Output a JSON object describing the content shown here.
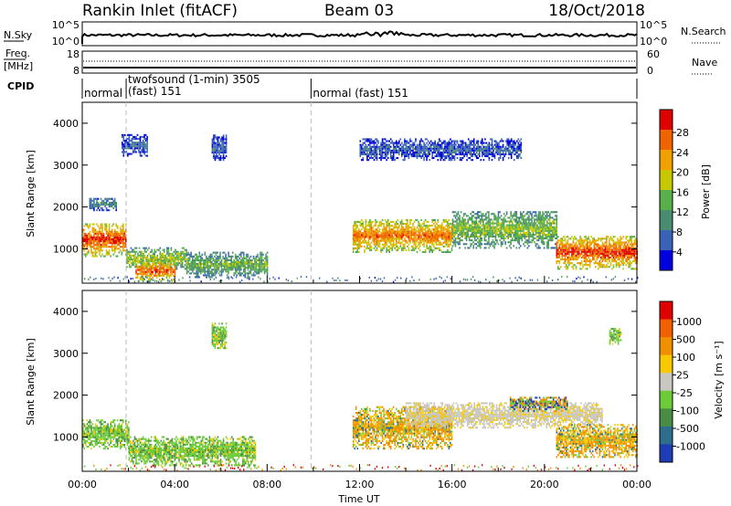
{
  "header": {
    "station": "Rankin Inlet (fitACF)",
    "beam": "Beam 03",
    "date": "18/Oct/2018"
  },
  "status_panels": {
    "nsky_label": "N.Sky",
    "nsky_ticks": [
      "10^5",
      "10^0"
    ],
    "nsearch_label": "N.Search",
    "nsearch_ticks": [
      "10^5",
      "10^0"
    ],
    "freq_label": "Freq.",
    "freq_unit": "[MHz]",
    "freq_ticks": [
      "18",
      "8"
    ],
    "nave_label": "Nave",
    "nave_ticks": [
      "60",
      "0"
    ],
    "cpid_label": "CPID",
    "cpid_segments": [
      {
        "start_h": 0.0,
        "end_h": 1.9,
        "line1": "normal",
        "line2": ""
      },
      {
        "start_h": 1.9,
        "end_h": 9.9,
        "line1": "twofsound (1-min) 3505",
        "line2": "(fast) 151"
      },
      {
        "start_h": 9.9,
        "end_h": 24.0,
        "line1": "normal (fast) 151",
        "line2": ""
      }
    ]
  },
  "chart_data": [
    {
      "type": "heatmap",
      "title": "",
      "quantity": "Power",
      "ylabel": "Slant Range [km]",
      "xlabel": "",
      "ylim": [
        180,
        4500
      ],
      "yticks": [
        "1000",
        "2000",
        "3000",
        "4000"
      ],
      "xticks": [],
      "colorbar_label": "Power [dB]",
      "colorbar_ticks": [
        "28",
        "24",
        "20",
        "16",
        "12",
        "8",
        "4"
      ],
      "colorbar_colors": [
        "#0000e0",
        "#3a63b8",
        "#4a8c70",
        "#58b04a",
        "#c8c800",
        "#f0a000",
        "#f06400",
        "#e00000"
      ],
      "regions": [
        {
          "t": [
            0.0,
            1.9
          ],
          "range": [
            800,
            1600
          ],
          "level": 0.9
        },
        {
          "t": [
            1.9,
            4.5
          ],
          "range": [
            500,
            1000
          ],
          "level": 0.55
        },
        {
          "t": [
            2.3,
            4.0
          ],
          "range": [
            200,
            700
          ],
          "level": 0.85
        },
        {
          "t": [
            4.5,
            8.0
          ],
          "range": [
            300,
            900
          ],
          "level": 0.45
        },
        {
          "t": [
            11.7,
            16.0
          ],
          "range": [
            900,
            1700
          ],
          "level": 0.8
        },
        {
          "t": [
            16.0,
            20.5
          ],
          "range": [
            1000,
            1900
          ],
          "level": 0.5
        },
        {
          "t": [
            20.5,
            24.0
          ],
          "range": [
            500,
            1300
          ],
          "level": 0.9
        },
        {
          "t": [
            0.3,
            1.5
          ],
          "range": [
            1900,
            2200
          ],
          "level": 0.3
        },
        {
          "t": [
            5.6,
            6.2
          ],
          "range": [
            3100,
            3700
          ],
          "level": 0.2
        },
        {
          "t": [
            12.0,
            19.0
          ],
          "range": [
            3100,
            3600
          ],
          "level": 0.2
        },
        {
          "t": [
            1.7,
            2.8
          ],
          "range": [
            3200,
            3700
          ],
          "level": 0.2
        }
      ]
    },
    {
      "type": "heatmap",
      "title": "",
      "quantity": "Velocity",
      "ylabel": "Slant Range [km]",
      "xlabel": "Time UT",
      "ylim": [
        180,
        4500
      ],
      "yticks": [
        "1000",
        "2000",
        "3000",
        "4000"
      ],
      "xticks": [
        "00:00",
        "04:00",
        "08:00",
        "12:00",
        "16:00",
        "20:00",
        "00:00"
      ],
      "colorbar_label": "Velocity [m s⁻¹]",
      "colorbar_ticks": [
        "1000",
        "500",
        "100",
        "25",
        "-25",
        "-100",
        "-500",
        "-1000"
      ],
      "colorbar_colors": [
        "#1e3cb4",
        "#2e6e8c",
        "#4a8c46",
        "#6ccc38",
        "#c8c8c0",
        "#f8c800",
        "#f09000",
        "#f06000",
        "#e00000"
      ],
      "regions": [
        {
          "t": [
            0.0,
            2.0
          ],
          "range": [
            700,
            1400
          ],
          "kind": "green"
        },
        {
          "t": [
            2.0,
            7.5
          ],
          "range": [
            300,
            1000
          ],
          "kind": "green"
        },
        {
          "t": [
            11.7,
            16.0
          ],
          "range": [
            700,
            1700
          ],
          "kind": "orange"
        },
        {
          "t": [
            14.0,
            22.5
          ],
          "range": [
            1200,
            1800
          ],
          "kind": "grey"
        },
        {
          "t": [
            18.5,
            21.0
          ],
          "range": [
            1600,
            1950
          ],
          "kind": "mixed"
        },
        {
          "t": [
            20.5,
            24.0
          ],
          "range": [
            500,
            1300
          ],
          "kind": "orange"
        },
        {
          "t": [
            5.6,
            6.2
          ],
          "range": [
            3100,
            3700
          ],
          "kind": "green"
        },
        {
          "t": [
            22.8,
            23.3
          ],
          "range": [
            3200,
            3600
          ],
          "kind": "green"
        }
      ]
    }
  ]
}
